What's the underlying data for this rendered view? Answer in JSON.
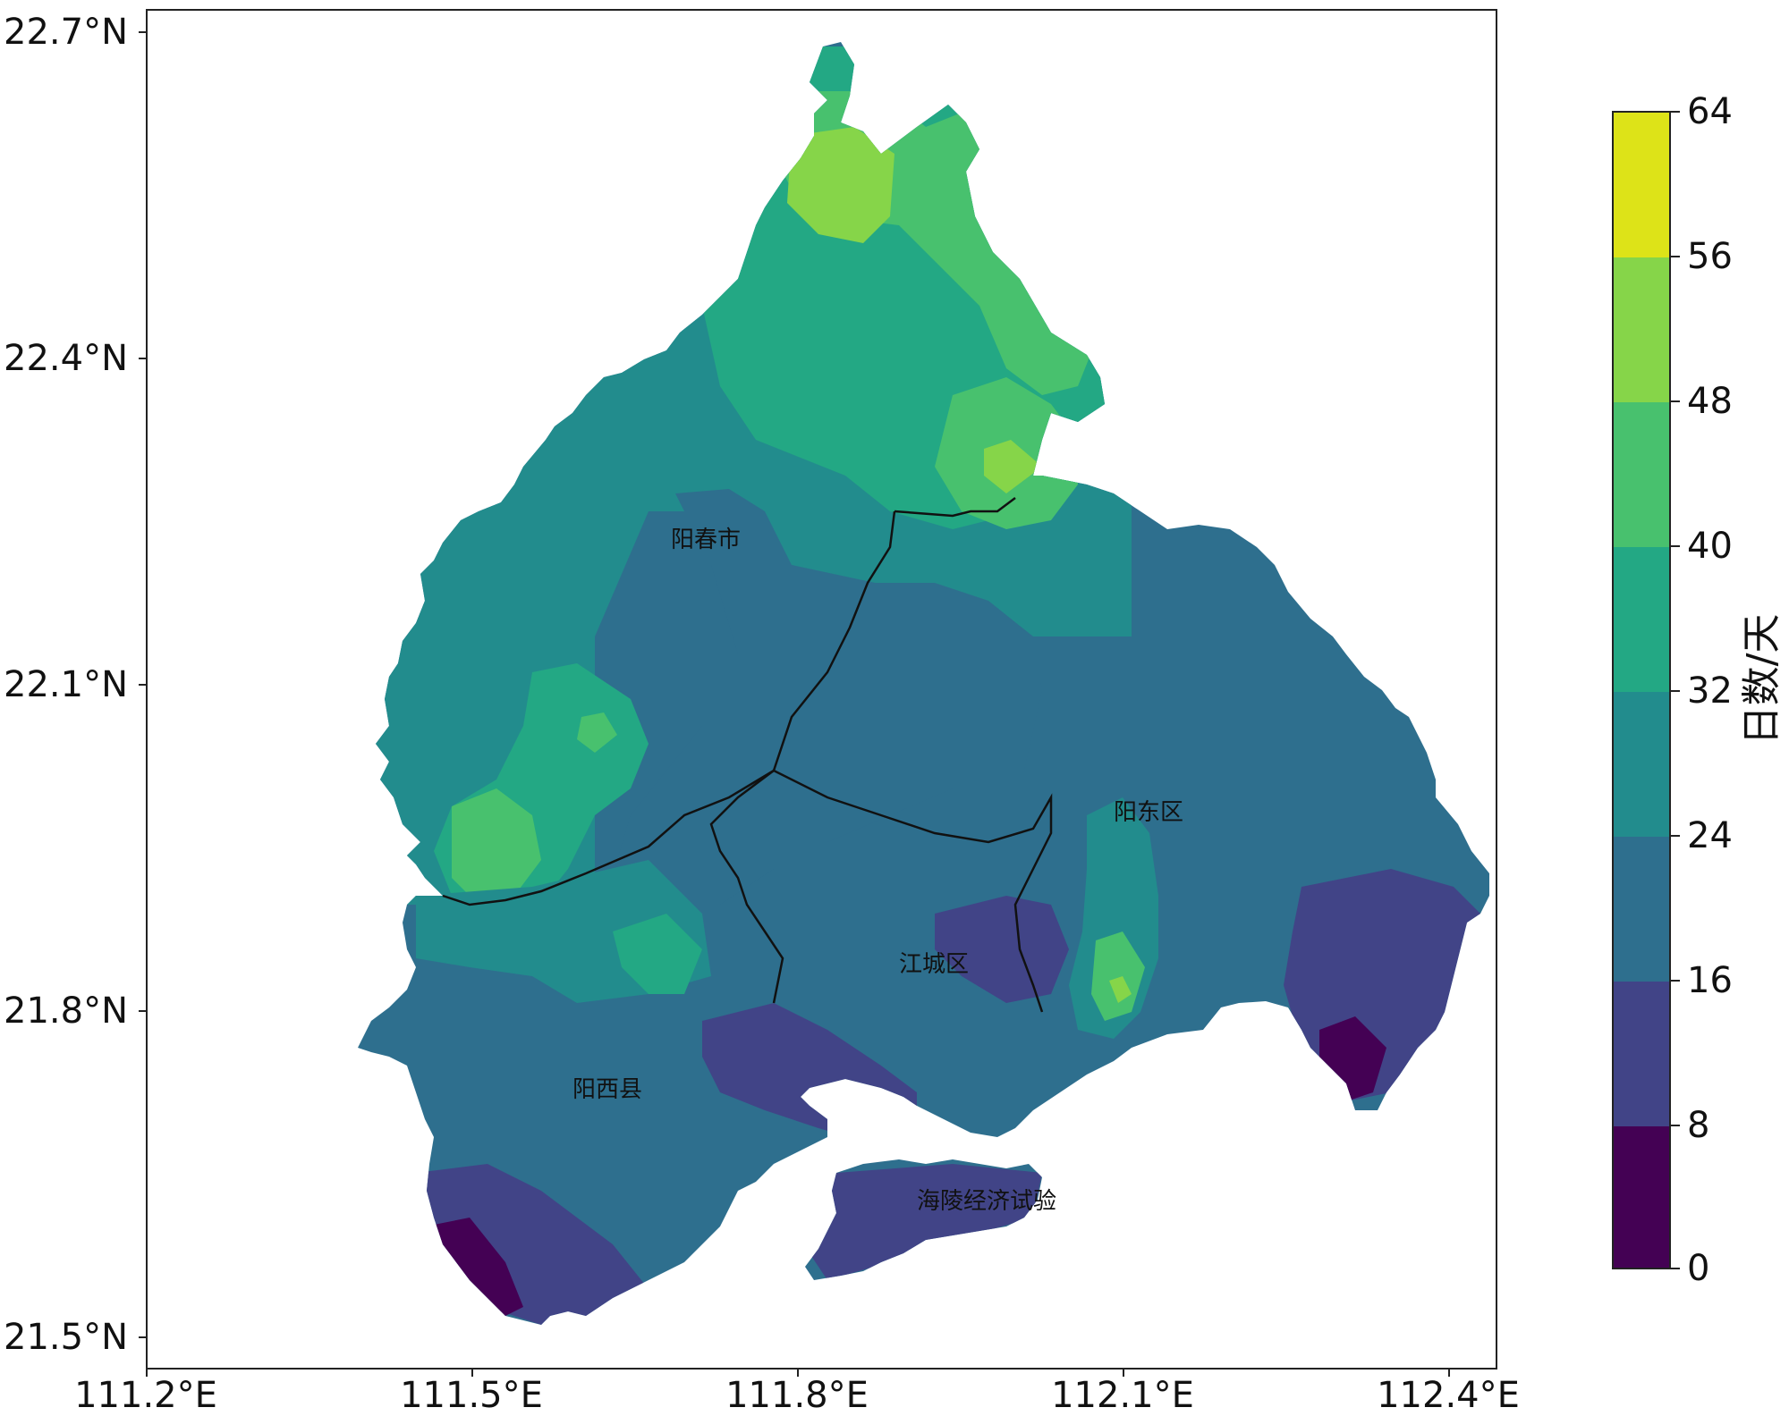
{
  "map": {
    "x_ticks": [
      "111.2°E",
      "111.5°E",
      "111.8°E",
      "112.1°E",
      "112.4°E"
    ],
    "y_ticks": [
      "22.7°N",
      "22.4°N",
      "22.1°N",
      "21.8°N",
      "21.5°N"
    ],
    "regions": [
      {
        "name": "阳春市"
      },
      {
        "name": "阳东区"
      },
      {
        "name": "江城区"
      },
      {
        "name": "阳西县"
      },
      {
        "name": "海陵经济试验"
      }
    ]
  },
  "colorbar": {
    "title": "日数/天",
    "ticks": [
      "64",
      "56",
      "48",
      "40",
      "32",
      "24",
      "16",
      "8",
      "0"
    ],
    "bins": [
      {
        "range": "56-64",
        "color": "#dde318"
      },
      {
        "range": "48-56",
        "color": "#86d549"
      },
      {
        "range": "40-48",
        "color": "#48c16e"
      },
      {
        "range": "32-40",
        "color": "#23a884"
      },
      {
        "range": "24-32",
        "color": "#228c8d"
      },
      {
        "range": "16-24",
        "color": "#2e6f8e"
      },
      {
        "range": "8-16",
        "color": "#414487"
      },
      {
        "range": "0-8",
        "color": "#440154"
      }
    ]
  }
}
